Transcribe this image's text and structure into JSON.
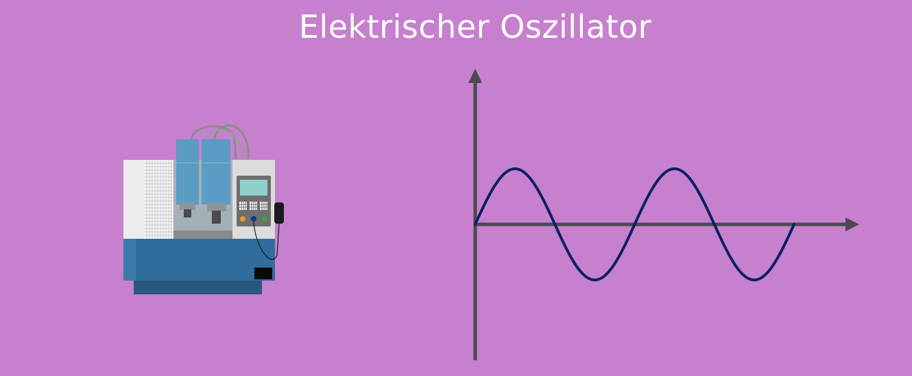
{
  "title": "Elektrischer Oszillator",
  "colors": {
    "background": "#c680cd",
    "wave": "#0b1f66",
    "axes": "#4a4a4f",
    "machine_body": "#2f6d9c",
    "machine_panel": "#dcdcdc",
    "spindle": "#5a9cc4",
    "screen": "#8fd0cb"
  },
  "icons": [
    "cnc-machine-icon"
  ],
  "chart_data": {
    "type": "line",
    "function": "sine",
    "cycles": 2,
    "title": "",
    "xlabel": "",
    "ylabel": "",
    "grid": false,
    "axes_arrows": true
  }
}
